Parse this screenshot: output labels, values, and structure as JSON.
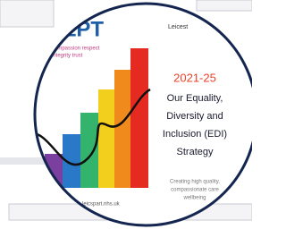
{
  "cover": {
    "brand": "reLPT",
    "values_line1": "compassion respect",
    "values_line2": "integrity trust",
    "org": "Leicest",
    "years": "2021-25",
    "title_lines": [
      "Our Equality,",
      "Diversity and",
      "Inclusion (EDI)",
      "Strategy"
    ],
    "tagline_lines": [
      "Creating high quality,",
      "compassionate care",
      "wellbeing"
    ],
    "website": "leicspart.nhs.uk"
  }
}
